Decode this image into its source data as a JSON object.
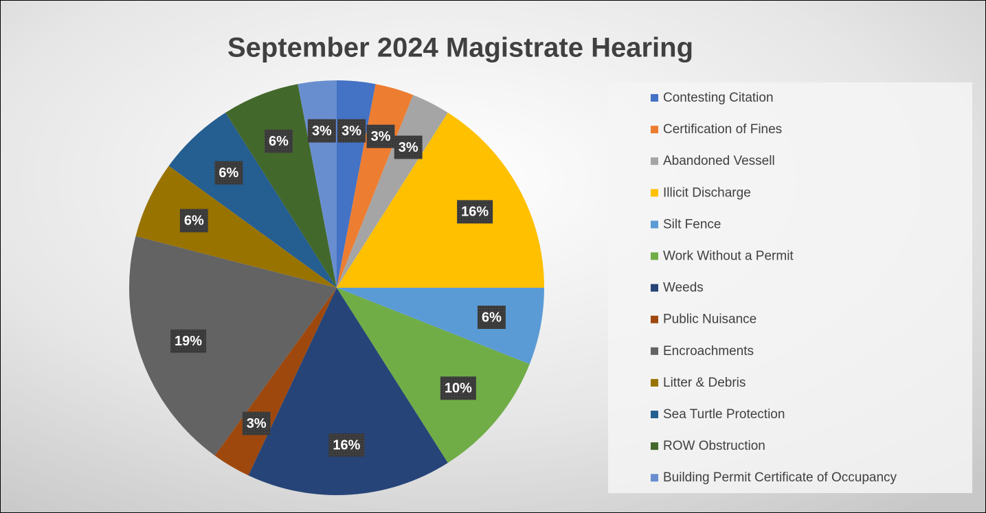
{
  "chart_data": {
    "type": "pie",
    "title": "September 2024 Magistrate Hearing",
    "categories": [
      "Contesting Citation",
      "Certification of Fines",
      "Abandoned Vessell",
      "Illicit Discharge",
      "Silt Fence",
      "Work Without a Permit",
      "Weeds",
      "Public Nuisance",
      "Encroachments",
      "Litter & Debris",
      "Sea Turtle Protection",
      "ROW Obstruction",
      "Building Permit Certificate of Occupancy"
    ],
    "values": [
      3,
      3,
      3,
      16,
      6,
      10,
      16,
      3,
      19,
      6,
      6,
      6,
      3
    ],
    "value_labels": [
      "3%",
      "3%",
      "3%",
      "16%",
      "6%",
      "10%",
      "16%",
      "3%",
      "19%",
      "6%",
      "6%",
      "6%",
      "3%"
    ],
    "colors": [
      "#4472c4",
      "#ed7d31",
      "#a5a5a5",
      "#ffc000",
      "#5b9bd5",
      "#70ad47",
      "#264478",
      "#9e480e",
      "#636363",
      "#997300",
      "#255e91",
      "#43682b",
      "#698ed0"
    ],
    "legend": "right"
  }
}
